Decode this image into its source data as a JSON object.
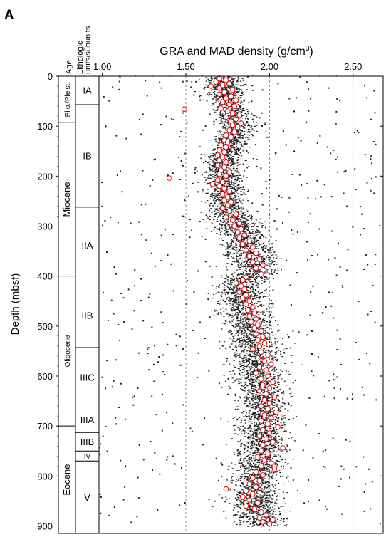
{
  "panel_label": "A",
  "chart_data": {
    "type": "scatter",
    "title": "GRA and MAD density (g/cm³)",
    "title_base": "GRA and MAD density (g/cm",
    "title_sup": "3",
    "title_end": ")",
    "xlabel": "GRA and MAD density (g/cm³)",
    "ylabel": "Depth (mbsf)",
    "xlim": [
      0.98,
      2.68
    ],
    "ylim": [
      0,
      915
    ],
    "x_ticks": [
      1.0,
      1.5,
      2.0,
      2.5
    ],
    "x_tick_labels": [
      "1.00",
      "1.50",
      "2.00",
      "2.50"
    ],
    "y_ticks": [
      0,
      100,
      200,
      300,
      400,
      500,
      600,
      700,
      800,
      900
    ],
    "y_tick_labels": [
      "0",
      "100",
      "200",
      "300",
      "400",
      "500",
      "600",
      "700",
      "800",
      "900"
    ],
    "x_axis_position": "top",
    "grid": "dashed vertical lines at 1.50, 2.00, 2.50",
    "age_column_header": "Age",
    "age_units": [
      {
        "label": "Plio./Pleist.",
        "top": 0,
        "bottom": 93
      },
      {
        "label": "Miocene",
        "top": 93,
        "bottom": 400
      },
      {
        "label": "Oligocene",
        "top": 400,
        "bottom": 700
      },
      {
        "label": "Eocene",
        "top": 700,
        "bottom": 915
      }
    ],
    "litho_column_header": "Lithologic units/subunits",
    "litho_units": [
      {
        "label": "IA",
        "top": 0,
        "bottom": 57
      },
      {
        "label": "IB",
        "top": 57,
        "bottom": 262
      },
      {
        "label": "IIA",
        "top": 262,
        "bottom": 414
      },
      {
        "label": "IIB",
        "top": 414,
        "bottom": 543
      },
      {
        "label": "IIIC",
        "top": 543,
        "bottom": 662
      },
      {
        "label": "IIIA",
        "top": 662,
        "bottom": 713
      },
      {
        "label": "IIIB",
        "top": 713,
        "bottom": 750
      },
      {
        "label": "IV",
        "top": 750,
        "bottom": 770
      },
      {
        "label": "V",
        "top": 770,
        "bottom": 915
      }
    ],
    "gra_series": {
      "marker": "small black dots",
      "color": "#222222",
      "trend": [
        [
          0,
          1.72
        ],
        [
          50,
          1.75
        ],
        [
          100,
          1.81
        ],
        [
          160,
          1.73
        ],
        [
          200,
          1.72
        ],
        [
          235,
          1.74
        ],
        [
          262,
          1.74
        ],
        [
          300,
          1.81
        ],
        [
          350,
          1.87
        ],
        [
          390,
          1.9
        ],
        [
          420,
          1.82
        ],
        [
          480,
          1.86
        ],
        [
          530,
          1.9
        ],
        [
          600,
          1.94
        ],
        [
          660,
          1.96
        ],
        [
          720,
          1.96
        ],
        [
          760,
          1.95
        ],
        [
          800,
          1.93
        ],
        [
          840,
          1.9
        ],
        [
          870,
          1.94
        ],
        [
          915,
          1.96
        ]
      ]
    },
    "mad_series": {
      "marker": "open circles",
      "color": "#dd1111",
      "points": [
        [
          5,
          1.7
        ],
        [
          8,
          1.74
        ],
        [
          12,
          1.68
        ],
        [
          15,
          1.76
        ],
        [
          18,
          1.72
        ],
        [
          20,
          1.65
        ],
        [
          24,
          1.7
        ],
        [
          28,
          1.78
        ],
        [
          32,
          1.73
        ],
        [
          36,
          1.7
        ],
        [
          40,
          1.77
        ],
        [
          44,
          1.74
        ],
        [
          48,
          1.8
        ],
        [
          52,
          1.72
        ],
        [
          56,
          1.76
        ],
        [
          60,
          1.79
        ],
        [
          64,
          1.71
        ],
        [
          66,
          1.49
        ],
        [
          70,
          1.75
        ],
        [
          74,
          1.78
        ],
        [
          78,
          1.82
        ],
        [
          82,
          1.74
        ],
        [
          86,
          1.8
        ],
        [
          90,
          1.77
        ],
        [
          94,
          1.83
        ],
        [
          98,
          1.78
        ],
        [
          102,
          1.81
        ],
        [
          108,
          1.76
        ],
        [
          112,
          1.79
        ],
        [
          118,
          1.74
        ],
        [
          122,
          1.77
        ],
        [
          128,
          1.73
        ],
        [
          132,
          1.75
        ],
        [
          138,
          1.71
        ],
        [
          142,
          1.74
        ],
        [
          148,
          1.7
        ],
        [
          152,
          1.73
        ],
        [
          158,
          1.69
        ],
        [
          162,
          1.72
        ],
        [
          168,
          1.7
        ],
        [
          172,
          1.74
        ],
        [
          178,
          1.69
        ],
        [
          182,
          1.73
        ],
        [
          188,
          1.71
        ],
        [
          192,
          1.76
        ],
        [
          196,
          1.7
        ],
        [
          200,
          1.74
        ],
        [
          204,
          1.4
        ],
        [
          208,
          1.69
        ],
        [
          212,
          1.72
        ],
        [
          216,
          1.66
        ],
        [
          220,
          1.7
        ],
        [
          225,
          1.73
        ],
        [
          230,
          1.76
        ],
        [
          236,
          1.72
        ],
        [
          242,
          1.75
        ],
        [
          248,
          1.73
        ],
        [
          252,
          1.77
        ],
        [
          258,
          1.75
        ],
        [
          264,
          1.72
        ],
        [
          270,
          1.76
        ],
        [
          276,
          1.8
        ],
        [
          282,
          1.74
        ],
        [
          288,
          1.78
        ],
        [
          294,
          1.82
        ],
        [
          300,
          1.79
        ],
        [
          306,
          1.83
        ],
        [
          312,
          1.81
        ],
        [
          318,
          1.85
        ],
        [
          324,
          1.82
        ],
        [
          330,
          1.88
        ],
        [
          336,
          1.84
        ],
        [
          342,
          1.9
        ],
        [
          348,
          1.86
        ],
        [
          354,
          1.92
        ],
        [
          360,
          1.88
        ],
        [
          366,
          1.94
        ],
        [
          372,
          1.9
        ],
        [
          378,
          1.96
        ],
        [
          384,
          1.92
        ],
        [
          390,
          2.0
        ],
        [
          396,
          1.95
        ],
        [
          402,
          1.86
        ],
        [
          408,
          1.84
        ],
        [
          414,
          1.8
        ],
        [
          420,
          1.83
        ],
        [
          426,
          1.85
        ],
        [
          432,
          1.82
        ],
        [
          438,
          1.86
        ],
        [
          444,
          1.84
        ],
        [
          450,
          1.88
        ],
        [
          456,
          1.86
        ],
        [
          462,
          1.9
        ],
        [
          468,
          1.87
        ],
        [
          474,
          1.91
        ],
        [
          480,
          1.88
        ],
        [
          486,
          1.92
        ],
        [
          492,
          1.89
        ],
        [
          498,
          1.93
        ],
        [
          504,
          1.91
        ],
        [
          510,
          1.95
        ],
        [
          516,
          1.92
        ],
        [
          522,
          1.96
        ],
        [
          528,
          1.93
        ],
        [
          534,
          1.97
        ],
        [
          540,
          1.94
        ],
        [
          546,
          1.9
        ],
        [
          552,
          1.95
        ],
        [
          558,
          1.99
        ],
        [
          564,
          1.93
        ],
        [
          570,
          1.97
        ],
        [
          576,
          2.01
        ],
        [
          582,
          1.94
        ],
        [
          588,
          1.98
        ],
        [
          594,
          1.92
        ],
        [
          600,
          1.99
        ],
        [
          606,
          1.95
        ],
        [
          612,
          2.02
        ],
        [
          618,
          1.96
        ],
        [
          624,
          2.0
        ],
        [
          630,
          1.94
        ],
        [
          636,
          1.98
        ],
        [
          642,
          2.03
        ],
        [
          648,
          1.97
        ],
        [
          654,
          2.0
        ],
        [
          660,
          1.95
        ],
        [
          666,
          1.99
        ],
        [
          672,
          2.04
        ],
        [
          678,
          1.97
        ],
        [
          684,
          2.01
        ],
        [
          690,
          1.95
        ],
        [
          696,
          1.99
        ],
        [
          702,
          2.05
        ],
        [
          708,
          1.96
        ],
        [
          714,
          2.0
        ],
        [
          720,
          1.94
        ],
        [
          726,
          1.98
        ],
        [
          732,
          2.02
        ],
        [
          738,
          1.96
        ],
        [
          744,
          2.08
        ],
        [
          750,
          1.95
        ],
        [
          756,
          1.99
        ],
        [
          762,
          1.93
        ],
        [
          768,
          1.97
        ],
        [
          774,
          2.01
        ],
        [
          780,
          1.95
        ],
        [
          786,
          2.03
        ],
        [
          792,
          1.92
        ],
        [
          798,
          1.96
        ],
        [
          804,
          1.9
        ],
        [
          810,
          1.94
        ],
        [
          816,
          1.88
        ],
        [
          822,
          1.92
        ],
        [
          826,
          1.74
        ],
        [
          830,
          1.86
        ],
        [
          836,
          1.9
        ],
        [
          842,
          1.84
        ],
        [
          848,
          1.88
        ],
        [
          854,
          1.93
        ],
        [
          860,
          1.86
        ],
        [
          866,
          1.91
        ],
        [
          872,
          1.95
        ],
        [
          878,
          1.98
        ],
        [
          884,
          1.94
        ],
        [
          888,
          2.02
        ],
        [
          892,
          1.96
        ],
        [
          896,
          2.0
        ]
      ]
    }
  }
}
